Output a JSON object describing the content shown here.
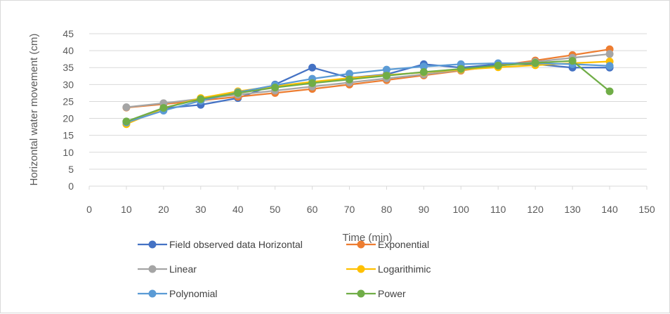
{
  "chart_data": {
    "type": "line",
    "title": "",
    "xlabel": "Time (min)",
    "ylabel": "Horizontal water movement (cm)",
    "xlim": [
      0,
      150
    ],
    "ylim": [
      0,
      45
    ],
    "xticks": [
      0,
      10,
      20,
      30,
      40,
      50,
      60,
      70,
      80,
      90,
      100,
      110,
      120,
      130,
      140,
      150
    ],
    "yticks": [
      0,
      5,
      10,
      15,
      20,
      25,
      30,
      35,
      40,
      45
    ],
    "grid": "horizontal",
    "legend_position": "bottom",
    "x": [
      10,
      20,
      30,
      40,
      50,
      60,
      70,
      80,
      90,
      100,
      110,
      120,
      130,
      140
    ],
    "series": [
      {
        "name": "Field observed data Horizontal",
        "color": "#4472c4",
        "values": [
          19,
          23,
          24,
          26,
          30,
          35,
          32,
          33,
          36,
          35,
          36,
          36,
          35,
          35
        ]
      },
      {
        "name": "Exponential",
        "color": "#ed7d31",
        "values": [
          23.2,
          24.2,
          25.3,
          26.4,
          27.5,
          28.7,
          30.0,
          31.3,
          32.7,
          34.1,
          35.6,
          37.1,
          38.7,
          40.4
        ]
      },
      {
        "name": "Linear",
        "color": "#a5a5a5",
        "values": [
          23.3,
          24.5,
          25.8,
          27.0,
          28.2,
          29.4,
          30.6,
          31.8,
          33.0,
          34.3,
          35.5,
          36.7,
          37.9,
          39.0
        ]
      },
      {
        "name": "Logarithimic",
        "color": "#ffc000",
        "values": [
          18.3,
          23.0,
          26.0,
          28.0,
          29.5,
          30.8,
          31.9,
          32.8,
          33.6,
          34.4,
          35.1,
          35.7,
          36.3,
          36.8
        ]
      },
      {
        "name": "Polynomial",
        "color": "#5b9bd5",
        "values": [
          18.8,
          22.3,
          25.2,
          27.7,
          29.8,
          31.7,
          33.2,
          34.4,
          35.3,
          36.0,
          36.3,
          36.3,
          36.0,
          35.5
        ]
      },
      {
        "name": "Power",
        "color": "#70ad47",
        "values": [
          19.1,
          23.1,
          25.7,
          27.5,
          29.1,
          30.4,
          31.5,
          32.6,
          33.7,
          34.6,
          35.6,
          36.4,
          37.0,
          28.0
        ]
      }
    ]
  }
}
